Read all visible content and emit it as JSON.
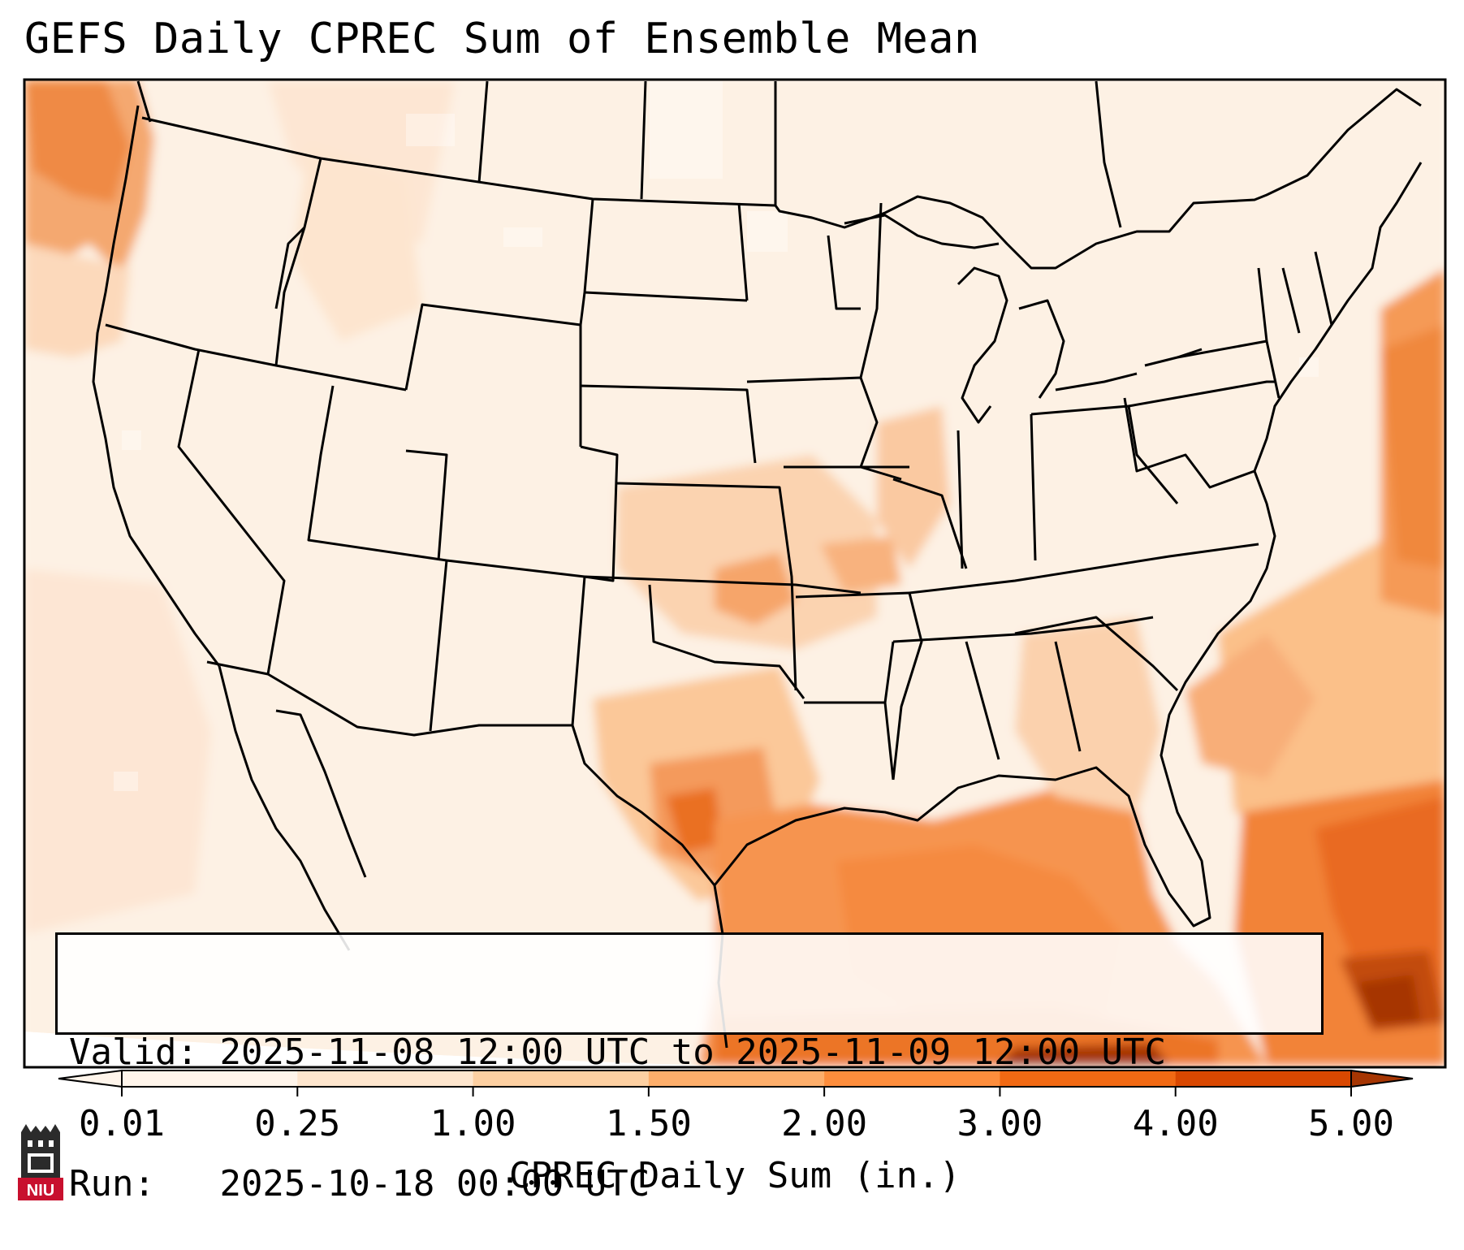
{
  "title": "GEFS Daily CPREC Sum of Ensemble Mean",
  "info": {
    "valid_label": "Valid:",
    "valid_value": "2025-11-08 12:00 UTC to 2025-11-09 12:00 UTC",
    "run_label": "Run:",
    "run_value": "2025-10-18 00:00 UTC"
  },
  "colorbar": {
    "title": "CPREC Daily Sum (in.)",
    "ticks": [
      "0.01",
      "0.25",
      "1.00",
      "1.50",
      "2.00",
      "3.00",
      "4.00",
      "5.00"
    ],
    "colors": [
      "#fff5eb",
      "#fee6ce",
      "#fdd0a2",
      "#fdae6b",
      "#fd8d3c",
      "#f16913",
      "#d94801",
      "#a63603"
    ],
    "extend": "both"
  },
  "logo": {
    "text": "NIU",
    "icon": "university-tower-icon"
  },
  "map": {
    "region": "Contiguous United States",
    "field": "convective precipitation daily sum",
    "heaviest_areas": [
      "Gulf of Mexico",
      "Caribbean / Bahamas",
      "Western Atlantic",
      "Pacific Northwest coast",
      "East Texas"
    ]
  }
}
